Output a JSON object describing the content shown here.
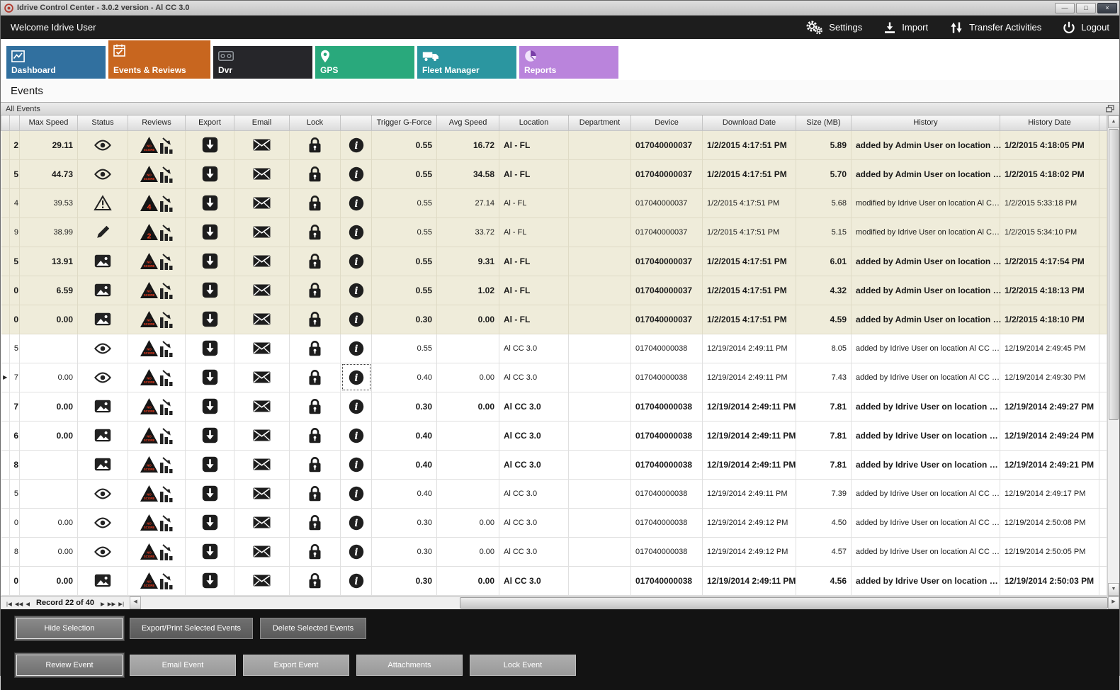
{
  "window": {
    "title": "Idrive Control Center - 3.0.2 version - Al CC 3.0",
    "controls": [
      {
        "name": "minimize-button",
        "glyph": "—"
      },
      {
        "name": "maximize-button",
        "glyph": "□"
      },
      {
        "name": "close-button",
        "glyph": "×"
      }
    ]
  },
  "topbar": {
    "welcome": "Welcome Idrive User",
    "actions": [
      {
        "id": "settings",
        "label": "Settings",
        "icon": "gears-icon"
      },
      {
        "id": "import",
        "label": "Import",
        "icon": "import-icon"
      },
      {
        "id": "transfer-activities",
        "label": "Transfer Activities",
        "icon": "transfer-arrows-icon"
      },
      {
        "id": "logout",
        "label": "Logout",
        "icon": "power-icon"
      }
    ]
  },
  "tabs": [
    {
      "id": "dashboard",
      "label": "Dashboard",
      "color": "#31709f",
      "icon": "line-chart-icon",
      "active": false
    },
    {
      "id": "events-reviews",
      "label": "Events & Reviews",
      "color": "#c8661f",
      "icon": "event-review-icon",
      "active": true
    },
    {
      "id": "dvr",
      "label": "Dvr",
      "color": "#26262a",
      "icon": "dvr-icon",
      "active": false
    },
    {
      "id": "gps",
      "label": "GPS",
      "color": "#29a97c",
      "icon": "map-pin-icon",
      "active": false
    },
    {
      "id": "fleet-manager",
      "label": "Fleet Manager",
      "color": "#2b96a0",
      "icon": "truck-icon",
      "active": false
    },
    {
      "id": "reports",
      "label": "Reports",
      "color": "#ba84dc",
      "icon": "pie-chart-icon",
      "active": false
    }
  ],
  "page": {
    "title": "Events"
  },
  "panel": {
    "title": "All Events"
  },
  "glyphs": {
    "up": "▲",
    "down": "▼",
    "left": "◀",
    "right": "▶",
    "current_row": "▶"
  },
  "grid": {
    "columns": [
      "Max Speed",
      "Status",
      "Reviews",
      "Export",
      "Email",
      "Lock",
      "",
      "Trigger G-Force",
      "Avg Speed",
      "Location",
      "Department",
      "Device",
      "Download Date",
      "Size (MB)",
      "History",
      "History Date"
    ],
    "rows": [
      {
        "id": "2",
        "max_speed": "29.11",
        "status": "eye-icon",
        "review": "noscore",
        "trigger": "0.55",
        "avg_speed": "16.72",
        "location": "Al - FL",
        "department": "",
        "device": "017040000037",
        "download_date": "1/2/2015 4:17:51 PM",
        "size": "5.89",
        "history": "added by Admin User on location …",
        "history_date": "1/2/2015 4:18:05 PM",
        "beige": true,
        "bold": true,
        "current": false
      },
      {
        "id": "5",
        "max_speed": "44.73",
        "status": "eye-icon",
        "review": "noscore",
        "trigger": "0.55",
        "avg_speed": "34.58",
        "location": "Al - FL",
        "department": "",
        "device": "017040000037",
        "download_date": "1/2/2015 4:17:51 PM",
        "size": "5.70",
        "history": "added by Admin User on location …",
        "history_date": "1/2/2015 4:18:02 PM",
        "beige": true,
        "bold": true,
        "current": false
      },
      {
        "id": "4",
        "max_speed": "39.53",
        "status": "warning-icon",
        "review": "4",
        "trigger": "0.55",
        "avg_speed": "27.14",
        "location": "Al - FL",
        "department": "",
        "device": "017040000037",
        "download_date": "1/2/2015 4:17:51 PM",
        "size": "5.68",
        "history": "modified by Idrive User on location Al C…",
        "history_date": "1/2/2015 5:33:18 PM",
        "beige": true,
        "bold": false,
        "current": false
      },
      {
        "id": "9",
        "max_speed": "38.99",
        "status": "pencil-icon",
        "review": "2",
        "trigger": "0.55",
        "avg_speed": "33.72",
        "location": "Al - FL",
        "department": "",
        "device": "017040000037",
        "download_date": "1/2/2015 4:17:51 PM",
        "size": "5.15",
        "history": "modified by Idrive User on location Al C…",
        "history_date": "1/2/2015 5:34:10 PM",
        "beige": true,
        "bold": false,
        "current": false
      },
      {
        "id": "5",
        "max_speed": "13.91",
        "status": "image-icon",
        "review": "noscore",
        "trigger": "0.55",
        "avg_speed": "9.31",
        "location": "Al - FL",
        "department": "",
        "device": "017040000037",
        "download_date": "1/2/2015 4:17:51 PM",
        "size": "6.01",
        "history": "added by Admin User on location …",
        "history_date": "1/2/2015 4:17:54 PM",
        "beige": true,
        "bold": true,
        "current": false
      },
      {
        "id": "0",
        "max_speed": "6.59",
        "status": "image-icon",
        "review": "noscore",
        "trigger": "0.55",
        "avg_speed": "1.02",
        "location": "Al - FL",
        "department": "",
        "device": "017040000037",
        "download_date": "1/2/2015 4:17:51 PM",
        "size": "4.32",
        "history": "added by Admin User on location …",
        "history_date": "1/2/2015 4:18:13 PM",
        "beige": true,
        "bold": true,
        "current": false
      },
      {
        "id": "0",
        "max_speed": "0.00",
        "status": "image-icon",
        "review": "noscore",
        "trigger": "0.30",
        "avg_speed": "0.00",
        "location": "Al - FL",
        "department": "",
        "device": "017040000037",
        "download_date": "1/2/2015 4:17:51 PM",
        "size": "4.59",
        "history": "added by Admin User on location …",
        "history_date": "1/2/2015 4:18:10 PM",
        "beige": true,
        "bold": true,
        "current": false
      },
      {
        "id": "5",
        "max_speed": "",
        "status": "eye-icon",
        "review": "noscore",
        "trigger": "0.55",
        "avg_speed": "",
        "location": "Al CC 3.0",
        "department": "",
        "device": "017040000038",
        "download_date": "12/19/2014 2:49:11 PM",
        "size": "8.05",
        "history": "added by Idrive User on location Al CC …",
        "history_date": "12/19/2014 2:49:45 PM",
        "beige": false,
        "bold": false,
        "current": false
      },
      {
        "id": "7",
        "max_speed": "0.00",
        "status": "eye-icon",
        "review": "noscore",
        "trigger": "0.40",
        "avg_speed": "0.00",
        "location": "Al CC 3.0",
        "department": "",
        "device": "017040000038",
        "download_date": "12/19/2014 2:49:11 PM",
        "size": "7.43",
        "history": "added by Idrive User on location Al CC …",
        "history_date": "12/19/2014 2:49:30 PM",
        "beige": false,
        "bold": false,
        "current": true
      },
      {
        "id": "7",
        "max_speed": "0.00",
        "status": "image-icon",
        "review": "noscore",
        "trigger": "0.30",
        "avg_speed": "0.00",
        "location": "Al CC 3.0",
        "department": "",
        "device": "017040000038",
        "download_date": "12/19/2014 2:49:11 PM",
        "size": "7.81",
        "history": "added by Idrive User on location …",
        "history_date": "12/19/2014 2:49:27 PM",
        "beige": false,
        "bold": true,
        "current": false
      },
      {
        "id": "6",
        "max_speed": "0.00",
        "status": "image-icon",
        "review": "noscore",
        "trigger": "0.40",
        "avg_speed": "",
        "location": "Al CC 3.0",
        "department": "",
        "device": "017040000038",
        "download_date": "12/19/2014 2:49:11 PM",
        "size": "7.81",
        "history": "added by Idrive User on location …",
        "history_date": "12/19/2014 2:49:24 PM",
        "beige": false,
        "bold": true,
        "current": false
      },
      {
        "id": "8",
        "max_speed": "",
        "status": "image-icon",
        "review": "noscore",
        "trigger": "0.40",
        "avg_speed": "",
        "location": "Al CC 3.0",
        "department": "",
        "device": "017040000038",
        "download_date": "12/19/2014 2:49:11 PM",
        "size": "7.81",
        "history": "added by Idrive User on location …",
        "history_date": "12/19/2014 2:49:21 PM",
        "beige": false,
        "bold": true,
        "current": false
      },
      {
        "id": "5",
        "max_speed": "",
        "status": "eye-icon",
        "review": "noscore",
        "trigger": "0.40",
        "avg_speed": "",
        "location": "Al CC 3.0",
        "department": "",
        "device": "017040000038",
        "download_date": "12/19/2014 2:49:11 PM",
        "size": "7.39",
        "history": "added by Idrive User on location Al CC …",
        "history_date": "12/19/2014 2:49:17 PM",
        "beige": false,
        "bold": false,
        "current": false
      },
      {
        "id": "0",
        "max_speed": "0.00",
        "status": "eye-icon",
        "review": "noscore",
        "trigger": "0.30",
        "avg_speed": "0.00",
        "location": "Al CC 3.0",
        "department": "",
        "device": "017040000038",
        "download_date": "12/19/2014 2:49:12 PM",
        "size": "4.50",
        "history": "added by Idrive User on location Al CC …",
        "history_date": "12/19/2014 2:50:08 PM",
        "beige": false,
        "bold": false,
        "current": false
      },
      {
        "id": "8",
        "max_speed": "0.00",
        "status": "eye-icon",
        "review": "noscore",
        "trigger": "0.30",
        "avg_speed": "0.00",
        "location": "Al CC 3.0",
        "department": "",
        "device": "017040000038",
        "download_date": "12/19/2014 2:49:12 PM",
        "size": "4.57",
        "history": "added by Idrive User on location Al CC …",
        "history_date": "12/19/2014 2:50:05 PM",
        "beige": false,
        "bold": false,
        "current": false
      },
      {
        "id": "0",
        "max_speed": "0.00",
        "status": "image-icon",
        "review": "noscore",
        "trigger": "0.30",
        "avg_speed": "0.00",
        "location": "Al CC 3.0",
        "department": "",
        "device": "017040000038",
        "download_date": "12/19/2014 2:49:11 PM",
        "size": "4.56",
        "history": "added by Idrive User on location …",
        "history_date": "12/19/2014 2:50:03 PM",
        "beige": false,
        "bold": true,
        "current": false
      }
    ]
  },
  "pager": {
    "label": "Record 22 of 40",
    "buttons_left": [
      {
        "name": "first-record-button",
        "glyph": "|◀"
      },
      {
        "name": "prev-page-button",
        "glyph": "◀◀"
      },
      {
        "name": "prev-record-button",
        "glyph": "◀"
      }
    ],
    "buttons_right": [
      {
        "name": "next-record-button",
        "glyph": "▶"
      },
      {
        "name": "next-page-button",
        "glyph": "▶▶"
      },
      {
        "name": "last-record-button",
        "glyph": "▶|"
      }
    ]
  },
  "actions_panel": {
    "row1": [
      {
        "label": "Hide Selection",
        "focused": true
      },
      {
        "label": "Export/Print Selected Events",
        "focused": false
      },
      {
        "label": "Delete Selected  Events",
        "focused": false
      }
    ],
    "row2": [
      {
        "label": "Review Event",
        "focused": true
      },
      {
        "label": "Email Event",
        "focused": false
      },
      {
        "label": "Export Event",
        "focused": false
      },
      {
        "label": "Attachments",
        "focused": false
      },
      {
        "label": "Lock Event",
        "focused": false
      }
    ]
  },
  "colors": {
    "accent_orange": "#c8661f",
    "row_beige": "#efecda",
    "badge_red": "#f43c1e",
    "topbar_dark": "#1d1d1d"
  }
}
